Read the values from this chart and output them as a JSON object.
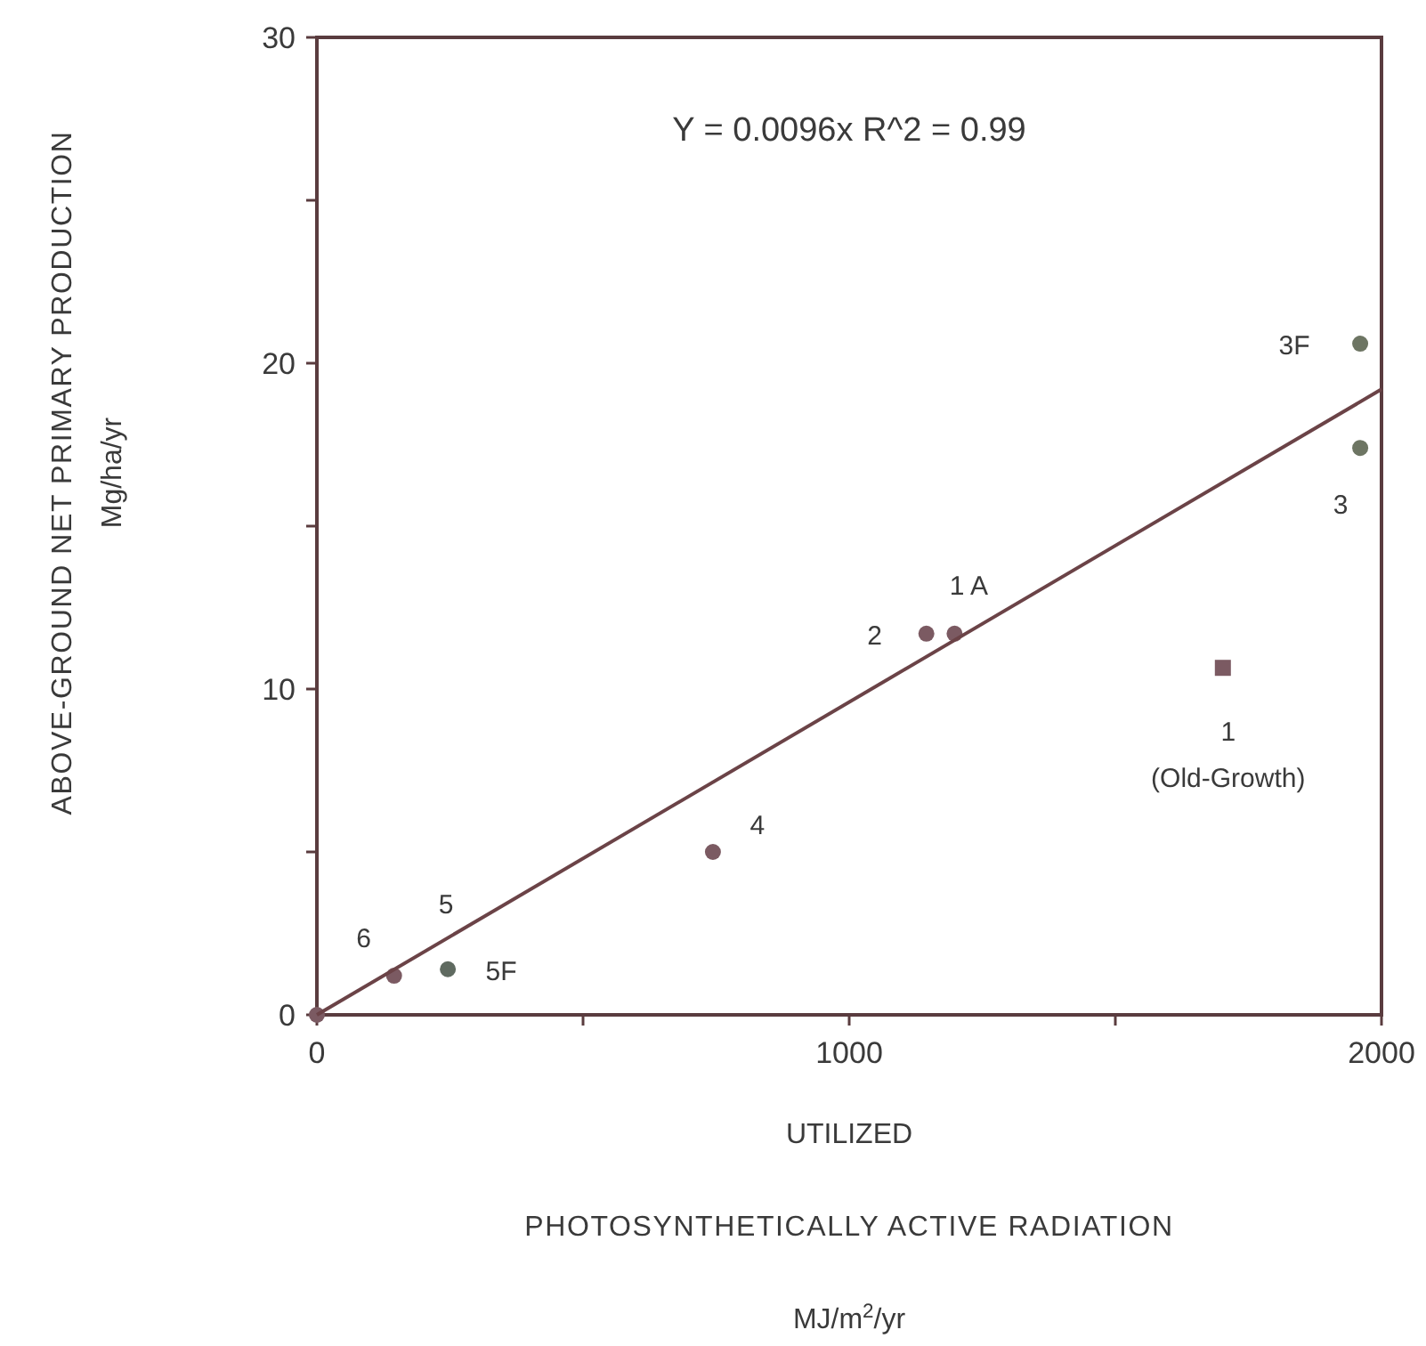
{
  "chart_data": {
    "type": "scatter",
    "xlabel": "UTILIZED\nPHOTOSYNTHETICALLY ACTIVE RADIATION\nMJ/m$^{2}$/yr",
    "ylabel": "ABOVE-GROUND NET PRIMARY PRODUCTION\nMg/ha/yr",
    "xlim": [
      0,
      2000
    ],
    "ylim": [
      0,
      30
    ],
    "xticks": [
      0,
      {
        "value": 500,
        "label": null
      },
      1000,
      {
        "value": 1500,
        "label": null
      },
      2000
    ],
    "yticks": [
      0,
      {
        "value": 5,
        "label": null
      },
      10,
      {
        "value": 15,
        "label": null
      },
      20,
      {
        "value": 25,
        "label": null
      },
      30
    ],
    "grid": false,
    "series": [
      {
        "marker": "circle",
        "color": "#7b5a62",
        "x": [
          0,
          145,
          246,
          744,
          1145,
          1198,
          1960,
          1960
        ],
        "values": [
          0,
          1.2,
          1.4,
          5.0,
          11.7,
          11.7,
          20.6,
          17.4
        ],
        "colors": [
          null,
          null,
          "#5f6a60",
          null,
          null,
          null,
          "#6d7563",
          "#6d7563"
        ]
      },
      {
        "type": "scatter",
        "marker": "square",
        "color": "#7b5a62",
        "x": [
          1702
        ],
        "values": [
          10.65
        ]
      },
      {
        "type": "line",
        "marker": "none",
        "line_style": "solid",
        "color": "#6b4347",
        "x": [
          0,
          2000
        ],
        "values": [
          0,
          19.2
        ]
      }
    ],
    "annotations": [
      "Y = 0.0096x R^2 = 0.99",
      {
        "text": "1 A",
        "x": 1198,
        "y": 11.7
      },
      {
        "text": "2",
        "x": 1145,
        "y": 11.7
      },
      {
        "text": "4",
        "x": 744,
        "y": 5.0
      },
      {
        "text": "5",
        "x": 246,
        "y": 2.36
      },
      {
        "text": "6",
        "x": 145,
        "y": 1.2
      },
      {
        "text": "5F",
        "x": 246,
        "y": 1.4
      },
      {
        "text": "1\n(Old-Growth)",
        "x": 1702,
        "y": 10.65
      },
      {
        "text": "3F",
        "x": 1960,
        "y": 20.6
      },
      {
        "text": "3",
        "x": 1960,
        "y": 17.4
      }
    ]
  }
}
